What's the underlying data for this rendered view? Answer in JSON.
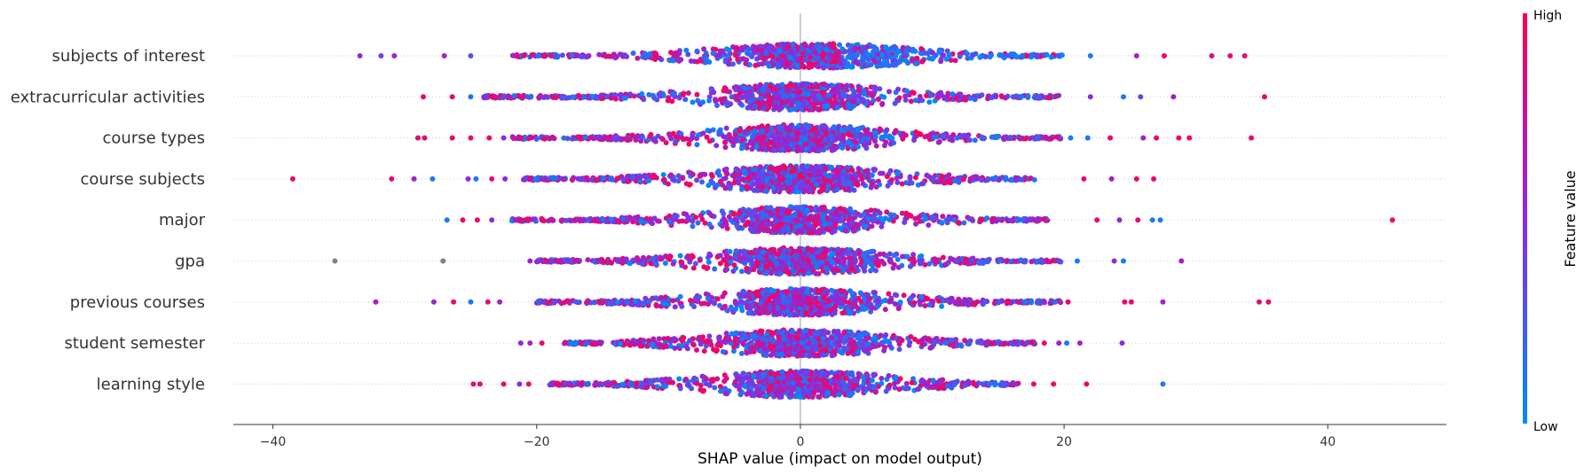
{
  "chart_data": {
    "type": "scatter",
    "subtype": "beeswarm",
    "title": "",
    "xlabel": "SHAP value (impact on model output)",
    "ylabel": "",
    "xlim": [
      -43,
      49
    ],
    "xticks": [
      -40,
      -20,
      0,
      20,
      40
    ],
    "xtick_labels": [
      "−40",
      "−20",
      "0",
      "20",
      "40"
    ],
    "grid": "dotted horizontal guide per feature",
    "zero_line": 0,
    "colorbar": {
      "title": "Feature value",
      "high_label": "High",
      "low_label": "Low",
      "low_color": "#008bfb",
      "mid_color": "#8a2be2",
      "high_color": "#ff0052"
    },
    "features": [
      {
        "name": "subjects of interest",
        "min": -33.5,
        "max": 33.8,
        "core_low": -22,
        "core_high": 20,
        "peak": 6,
        "density_center": 0,
        "outliers": [
          [
            -33.4,
            0.5
          ],
          [
            -31.8,
            0.4
          ],
          [
            -30.8,
            0.6
          ],
          [
            -27,
            0.6
          ],
          [
            -25,
            0.3
          ],
          [
            22,
            0.1
          ],
          [
            25.5,
            0.6
          ],
          [
            27.6,
            0.9
          ],
          [
            31.2,
            0.8
          ],
          [
            32.6,
            0.9
          ],
          [
            33.7,
            0.9
          ]
        ]
      },
      {
        "name": "extracurricular activities",
        "min": -28.8,
        "max": 35.2,
        "core_low": -24,
        "core_high": 20,
        "peak": 0,
        "density_center": 0,
        "outliers": [
          [
            -28.6,
            0.9
          ],
          [
            -26.4,
            0.9
          ],
          [
            -25,
            0.1
          ],
          [
            -24,
            0.5
          ],
          [
            22,
            0.5
          ],
          [
            24.5,
            0.1
          ],
          [
            25.8,
            0.4
          ],
          [
            28.3,
            0.6
          ],
          [
            35.2,
            0.9
          ]
        ]
      },
      {
        "name": "course types",
        "min": -29.3,
        "max": 34.2,
        "core_low": -22,
        "core_high": 20,
        "peak": 0,
        "density_center": 0,
        "outliers": [
          [
            -29,
            0.9
          ],
          [
            -28.5,
            0.9
          ],
          [
            -26.4,
            0.9
          ],
          [
            -25,
            0.9
          ],
          [
            -23.6,
            0.9
          ],
          [
            -22.5,
            0.5
          ],
          [
            20.5,
            0.1
          ],
          [
            21.8,
            0.1
          ],
          [
            23.5,
            0.9
          ],
          [
            26,
            0.6
          ],
          [
            27,
            0.9
          ],
          [
            28.7,
            0.9
          ],
          [
            29.5,
            0.9
          ],
          [
            34.2,
            0.9
          ]
        ]
      },
      {
        "name": "course subjects",
        "min": -38.6,
        "max": 26.9,
        "core_low": -21,
        "core_high": 18,
        "peak": 0,
        "density_center": 0,
        "outliers": [
          [
            -38.5,
            0.9
          ],
          [
            -31,
            0.9
          ],
          [
            -29.3,
            0.6
          ],
          [
            -27.9,
            0.1
          ],
          [
            -25.2,
            0.5
          ],
          [
            -24.6,
            0.1
          ],
          [
            -23.4,
            0.9
          ],
          [
            -22.4,
            0.5
          ],
          [
            21.5,
            0.9
          ],
          [
            23.6,
            0.6
          ],
          [
            25.5,
            0.9
          ],
          [
            26.8,
            0.9
          ]
        ]
      },
      {
        "name": "major",
        "min": -27,
        "max": 44.9,
        "core_low": -22,
        "core_high": 19,
        "peak": 0,
        "density_center": 0,
        "outliers": [
          [
            -26.8,
            0.1
          ],
          [
            -25.6,
            0.9
          ],
          [
            -24.5,
            0.9
          ],
          [
            -23.4,
            0.5
          ],
          [
            -21.6,
            0.6
          ],
          [
            22.5,
            0.9
          ],
          [
            24.2,
            0.5
          ],
          [
            25.6,
            0.9
          ],
          [
            26.7,
            0.1
          ],
          [
            27.3,
            0.1
          ],
          [
            44.9,
            0.9
          ]
        ]
      },
      {
        "name": "gpa",
        "min": -35.3,
        "max": 28.9,
        "core_low": -20,
        "core_high": 20,
        "peak": 0,
        "density_center": 0,
        "outliers": [
          [
            -35.3,
            -1
          ],
          [
            -27.1,
            -1
          ],
          [
            -20.5,
            0.6
          ],
          [
            -19.3,
            0.9
          ],
          [
            -18.2,
            0.6
          ],
          [
            21,
            0.1
          ],
          [
            23.8,
            0.5
          ],
          [
            24.5,
            0.1
          ],
          [
            28.9,
            0.6
          ]
        ]
      },
      {
        "name": "previous courses",
        "min": -32.3,
        "max": 35.6,
        "core_low": -20,
        "core_high": 20,
        "peak": 0,
        "density_center": 0,
        "outliers": [
          [
            -32.2,
            0.6
          ],
          [
            -27.8,
            0.6
          ],
          [
            -26.3,
            0.9
          ],
          [
            -25,
            0.1
          ],
          [
            -23.7,
            0.9
          ],
          [
            -22.8,
            0.6
          ],
          [
            20.3,
            0.9
          ],
          [
            24.6,
            0.9
          ],
          [
            25.1,
            0.9
          ],
          [
            27.5,
            0.6
          ],
          [
            34.8,
            0.9
          ],
          [
            35.5,
            0.9
          ]
        ]
      },
      {
        "name": "student semester",
        "min": -21.3,
        "max": 24.4,
        "core_low": -18,
        "core_high": 18,
        "peak": 0,
        "density_center": 0,
        "outliers": [
          [
            -21.2,
            0.5
          ],
          [
            -20.5,
            0.6
          ],
          [
            -19.6,
            0.9
          ],
          [
            18.5,
            0.9
          ],
          [
            19.6,
            0.6
          ],
          [
            20.2,
            0.1
          ],
          [
            21.2,
            0.6
          ],
          [
            24.4,
            0.5
          ]
        ]
      },
      {
        "name": "learning style",
        "min": -24.9,
        "max": 27.7,
        "core_low": -19,
        "core_high": 17,
        "peak": 0,
        "density_center": 0,
        "outliers": [
          [
            -24.8,
            0.9
          ],
          [
            -24.3,
            0.9
          ],
          [
            -22.5,
            0.9
          ],
          [
            -21.3,
            0.5
          ],
          [
            -20.6,
            0.9
          ],
          [
            14.8,
            0.1
          ],
          [
            16.2,
            0.5
          ],
          [
            17.7,
            0.9
          ],
          [
            19.2,
            0.9
          ],
          [
            21.7,
            0.9
          ],
          [
            27.5,
            0.1
          ]
        ]
      }
    ]
  }
}
